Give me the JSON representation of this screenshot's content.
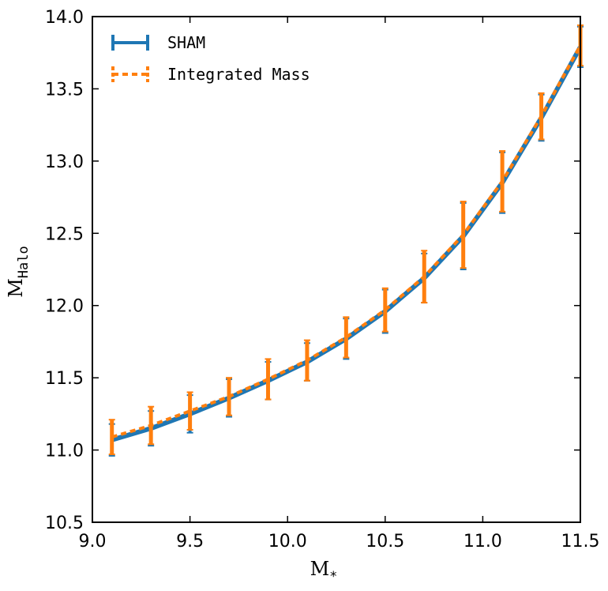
{
  "chart_data": {
    "type": "line",
    "xlabel": "M",
    "xlabel_sub": "*",
    "ylabel": "M",
    "ylabel_sub": "Halo",
    "xlim": [
      9.0,
      11.5
    ],
    "ylim": [
      10.5,
      14.0
    ],
    "xticks": [
      "9.0",
      "9.5",
      "10.0",
      "10.5",
      "11.0",
      "11.5"
    ],
    "yticks": [
      "10.5",
      "11.0",
      "11.5",
      "12.0",
      "12.5",
      "13.0",
      "13.5",
      "14.0"
    ],
    "grid": false,
    "legend_position": "top-left",
    "x": [
      9.1,
      9.3,
      9.5,
      9.7,
      9.9,
      10.1,
      10.3,
      10.5,
      10.7,
      10.9,
      11.1,
      11.3,
      11.5
    ],
    "series": [
      {
        "name": "SHAM",
        "color": "#1f77b4",
        "style": "solid",
        "values": [
          11.07,
          11.15,
          11.25,
          11.36,
          11.48,
          11.61,
          11.77,
          11.96,
          12.19,
          12.48,
          12.85,
          13.3,
          13.79
        ],
        "err": [
          0.11,
          0.12,
          0.13,
          0.13,
          0.13,
          0.13,
          0.14,
          0.15,
          0.17,
          0.23,
          0.21,
          0.16,
          0.14
        ]
      },
      {
        "name": "Integrated Mass",
        "color": "#ff7f0e",
        "style": "dashed",
        "values": [
          11.09,
          11.17,
          11.27,
          11.37,
          11.49,
          11.62,
          11.78,
          11.97,
          12.2,
          12.49,
          12.86,
          13.31,
          13.8
        ],
        "err": [
          0.12,
          0.13,
          0.13,
          0.13,
          0.14,
          0.14,
          0.14,
          0.15,
          0.18,
          0.23,
          0.21,
          0.16,
          0.14
        ]
      }
    ]
  }
}
